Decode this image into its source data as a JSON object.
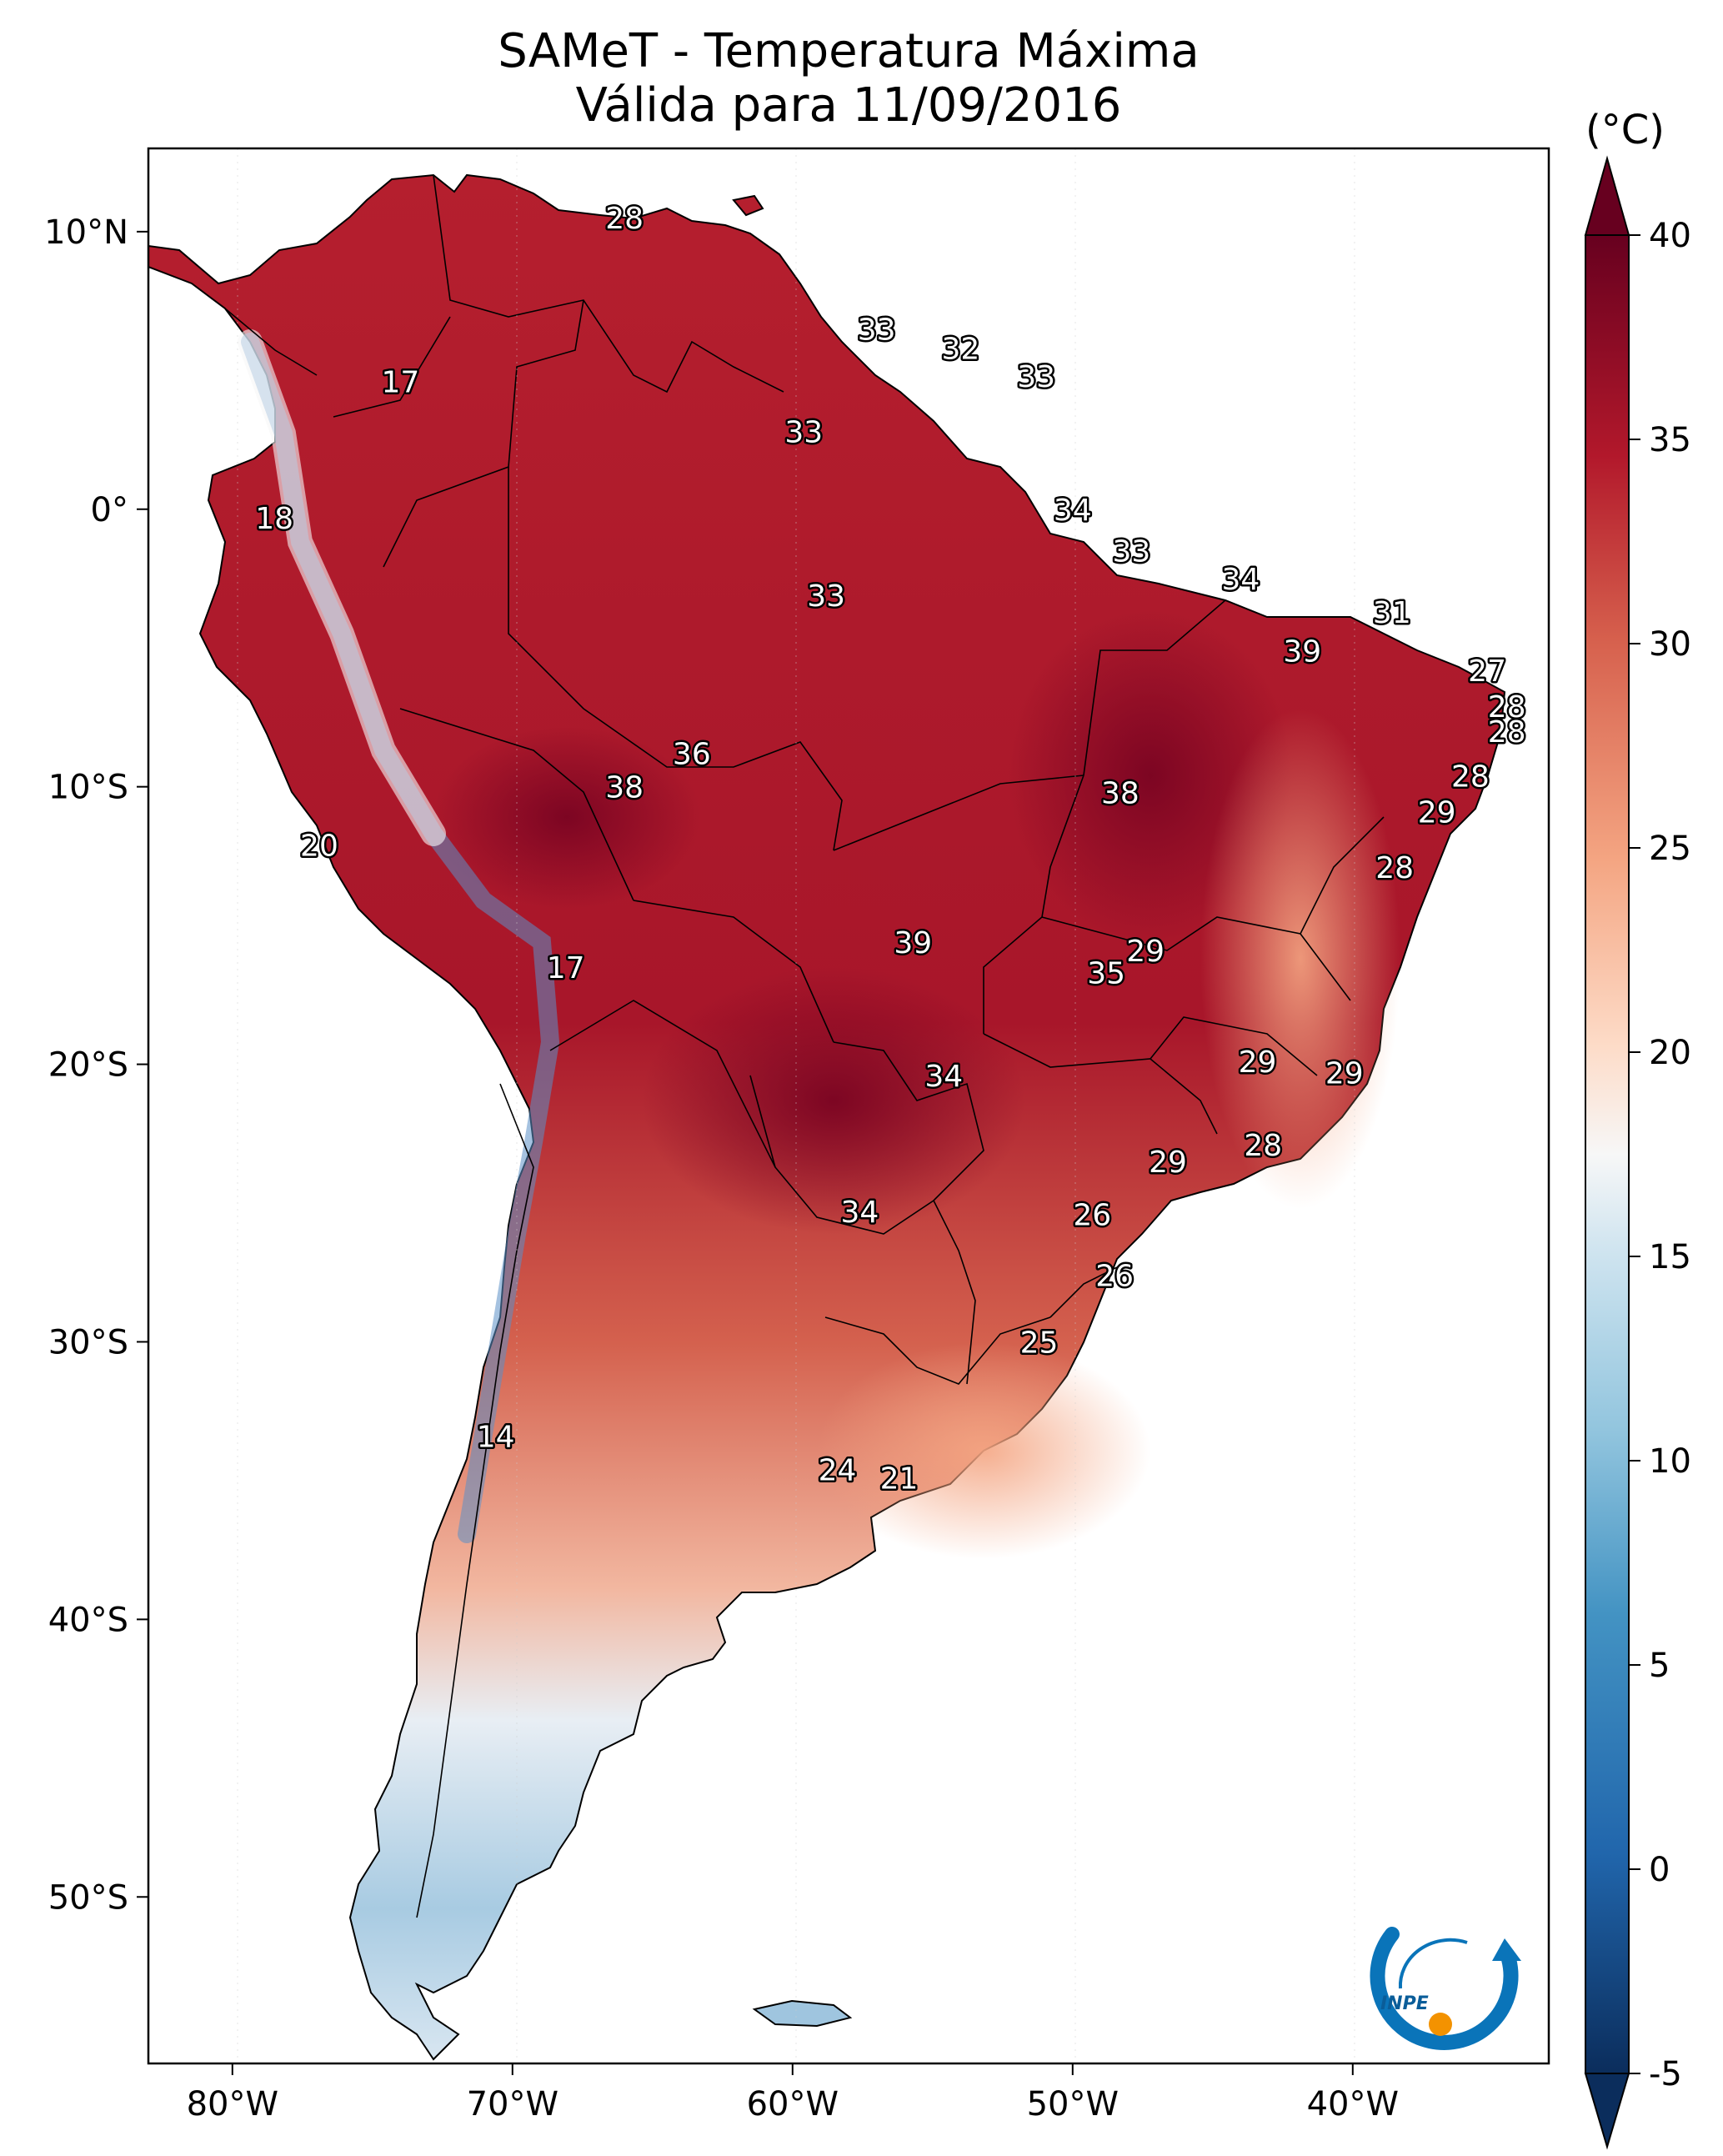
{
  "title": "SAMeT - Temperatura Máxima",
  "subtitle": "Válida para 11/09/2016",
  "colorbar": {
    "unit": "(°C)",
    "ticks": [
      "40",
      "35",
      "30",
      "25",
      "20",
      "15",
      "10",
      "5",
      "0",
      "-5"
    ],
    "range": [
      -5,
      40
    ],
    "colors": [
      "#0b2d5c",
      "#2166ac",
      "#4393c3",
      "#92c5de",
      "#d1e5f0",
      "#f7f7f7",
      "#fddbc7",
      "#f4a582",
      "#d6604d",
      "#b2182b",
      "#67001f"
    ]
  },
  "axes": {
    "lon_ticks": [
      "80°W",
      "70°W",
      "60°W",
      "50°W",
      "40°W"
    ],
    "lat_ticks": [
      "10°N",
      "0°",
      "10°S",
      "20°S",
      "30°S",
      "40°S",
      "50°S"
    ],
    "lon_range": [
      -83,
      -33
    ],
    "lat_range": [
      -56,
      13
    ]
  },
  "logo": {
    "text": "INPE"
  },
  "station_labels": [
    {
      "v": "28",
      "lon": -66.0,
      "lat": 10.5
    },
    {
      "v": "33",
      "lon": -57.0,
      "lat": 6.5
    },
    {
      "v": "32",
      "lon": -54.0,
      "lat": 5.8
    },
    {
      "v": "33",
      "lon": -51.3,
      "lat": 4.8
    },
    {
      "v": "17",
      "lon": -74.0,
      "lat": 4.6
    },
    {
      "v": "33",
      "lon": -59.6,
      "lat": 2.8
    },
    {
      "v": "34",
      "lon": -50.0,
      "lat": 0.0
    },
    {
      "v": "18",
      "lon": -78.5,
      "lat": -0.3
    },
    {
      "v": "33",
      "lon": -47.9,
      "lat": -1.5
    },
    {
      "v": "33",
      "lon": -58.8,
      "lat": -3.1
    },
    {
      "v": "34",
      "lon": -44.0,
      "lat": -2.5
    },
    {
      "v": "31",
      "lon": -38.6,
      "lat": -3.7
    },
    {
      "v": "39",
      "lon": -41.8,
      "lat": -5.1
    },
    {
      "v": "27",
      "lon": -35.2,
      "lat": -5.8
    },
    {
      "v": "28",
      "lon": -34.5,
      "lat": -7.1
    },
    {
      "v": "28",
      "lon": -34.5,
      "lat": -8.0
    },
    {
      "v": "36",
      "lon": -63.6,
      "lat": -8.8
    },
    {
      "v": "38",
      "lon": -66.0,
      "lat": -10.0
    },
    {
      "v": "38",
      "lon": -48.3,
      "lat": -10.2
    },
    {
      "v": "28",
      "lon": -35.8,
      "lat": -9.6
    },
    {
      "v": "29",
      "lon": -37.0,
      "lat": -10.9
    },
    {
      "v": "20",
      "lon": -76.9,
      "lat": -12.1
    },
    {
      "v": "28",
      "lon": -38.5,
      "lat": -12.9
    },
    {
      "v": "29",
      "lon": -47.4,
      "lat": -15.9
    },
    {
      "v": "35",
      "lon": -48.8,
      "lat": -16.7
    },
    {
      "v": "39",
      "lon": -55.7,
      "lat": -15.6
    },
    {
      "v": "17",
      "lon": -68.1,
      "lat": -16.5
    },
    {
      "v": "29",
      "lon": -43.4,
      "lat": -19.9
    },
    {
      "v": "29",
      "lon": -40.3,
      "lat": -20.3
    },
    {
      "v": "34",
      "lon": -54.6,
      "lat": -20.4
    },
    {
      "v": "28",
      "lon": -43.2,
      "lat": -22.9
    },
    {
      "v": "29",
      "lon": -46.6,
      "lat": -23.5
    },
    {
      "v": "34",
      "lon": -57.6,
      "lat": -25.3
    },
    {
      "v": "26",
      "lon": -49.3,
      "lat": -25.4
    },
    {
      "v": "26",
      "lon": -48.5,
      "lat": -27.6
    },
    {
      "v": "25",
      "lon": -51.2,
      "lat": -30.0
    },
    {
      "v": "14",
      "lon": -70.6,
      "lat": -33.4
    },
    {
      "v": "24",
      "lon": -58.4,
      "lat": -34.6
    },
    {
      "v": "21",
      "lon": -56.2,
      "lat": -34.9
    }
  ]
}
